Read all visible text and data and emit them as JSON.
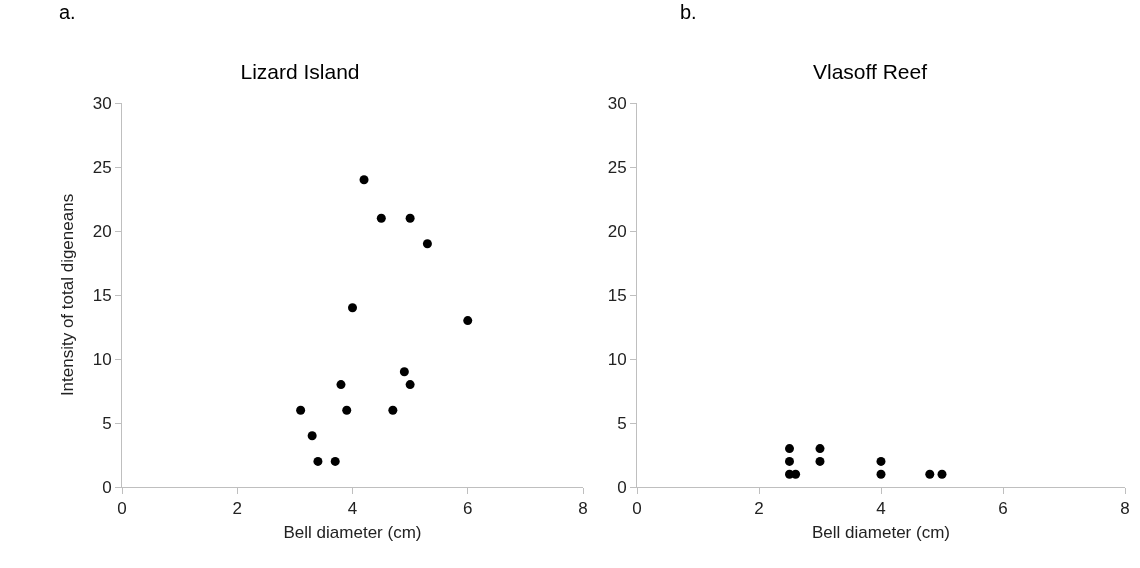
{
  "chart_data": [
    {
      "type": "scatter",
      "title": "Lizard Island",
      "annotations": [
        "a."
      ],
      "xlabel": "Bell diameter (cm)",
      "ylabel": "Intensity of total digeneans",
      "marker": "circle",
      "series": [
        {
          "color": "#000000",
          "x": [
            4.2,
            4.5,
            5.0,
            5.3,
            4.0,
            6.0,
            4.9,
            5.0,
            3.8,
            3.1,
            3.9,
            4.7,
            3.3,
            3.4,
            3.7
          ],
          "values": [
            24,
            21,
            21,
            19,
            14,
            13,
            9,
            8,
            8,
            6,
            6,
            6,
            4,
            2,
            2
          ]
        }
      ],
      "xlim": [
        0,
        8
      ],
      "xticks": [
        0,
        2,
        4,
        6,
        8
      ],
      "ylim": [
        0,
        30
      ],
      "yticks": [
        0,
        5,
        10,
        15,
        20,
        25,
        30
      ]
    },
    {
      "type": "scatter",
      "title": "Vlasoff Reef",
      "annotations": [
        "b."
      ],
      "xlabel": "Bell diameter (cm)",
      "marker": "circle",
      "series": [
        {
          "color": "#000000",
          "x": [
            2.5,
            2.5,
            2.5,
            2.6,
            3.0,
            3.0,
            4.0,
            4.0,
            4.8,
            5.0
          ],
          "values": [
            3,
            2,
            1,
            1,
            3,
            2,
            2,
            1,
            1,
            1
          ]
        }
      ],
      "xlim": [
        0,
        8
      ],
      "xticks": [
        0,
        2,
        4,
        6,
        8
      ],
      "ylim": [
        0,
        30
      ],
      "yticks": [
        0,
        5,
        10,
        15,
        20,
        25,
        30
      ]
    }
  ]
}
